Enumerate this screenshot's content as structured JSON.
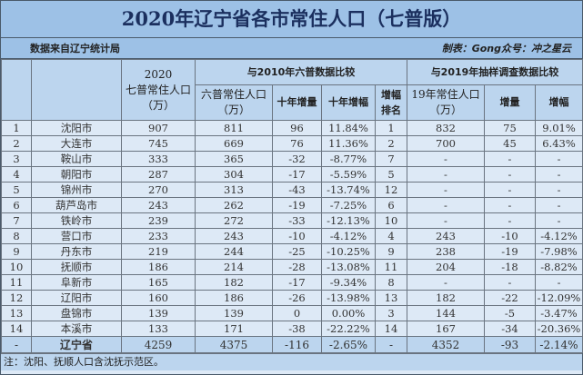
{
  "title": "2020年辽宁省各市常住人口（七普版）",
  "source": "数据来自辽宁统计局",
  "credit": "制表：Gong众号：冲之星云",
  "headers": {
    "col2020_year": "2020",
    "col2020_name": "七普常住人口",
    "col2020_unit": "（万）",
    "group2010": "与2010年六普数据比较",
    "group2019": "与2019年抽样调查数据比较",
    "pop2010_name": "六普常住人口",
    "pop2010_unit": "（万）",
    "inc10": "十年增量",
    "rate10": "十年增幅",
    "rank_a": "增幅",
    "rank_b": "排名",
    "pop2019_name": "19年常住人口",
    "pop2019_unit": "（万）",
    "inc19": "增量",
    "rate19": "增幅"
  },
  "rows": [
    [
      "1",
      "沈阳市",
      "907",
      "811",
      "96",
      "11.84%",
      "1",
      "832",
      "75",
      "9.01%"
    ],
    [
      "2",
      "大连市",
      "745",
      "669",
      "76",
      "11.36%",
      "2",
      "700",
      "45",
      "6.43%"
    ],
    [
      "3",
      "鞍山市",
      "333",
      "365",
      "-32",
      "-8.77%",
      "7",
      "-",
      "-",
      "-"
    ],
    [
      "4",
      "朝阳市",
      "287",
      "304",
      "-17",
      "-5.59%",
      "5",
      "-",
      "-",
      "-"
    ],
    [
      "5",
      "锦州市",
      "270",
      "313",
      "-43",
      "-13.74%",
      "12",
      "-",
      "-",
      "-"
    ],
    [
      "6",
      "葫芦岛市",
      "243",
      "262",
      "-19",
      "-7.25%",
      "6",
      "-",
      "-",
      "-"
    ],
    [
      "7",
      "铁岭市",
      "239",
      "272",
      "-33",
      "-12.13%",
      "10",
      "-",
      "-",
      "-"
    ],
    [
      "8",
      "营口市",
      "233",
      "243",
      "-10",
      "-4.12%",
      "4",
      "243",
      "-10",
      "-4.12%"
    ],
    [
      "9",
      "丹东市",
      "219",
      "244",
      "-25",
      "-10.25%",
      "9",
      "238",
      "-19",
      "-7.98%"
    ],
    [
      "10",
      "抚顺市",
      "186",
      "214",
      "-28",
      "-13.08%",
      "11",
      "204",
      "-18",
      "-8.82%"
    ],
    [
      "11",
      "阜新市",
      "165",
      "182",
      "-17",
      "-9.34%",
      "8",
      "-",
      "-",
      "-"
    ],
    [
      "12",
      "辽阳市",
      "160",
      "186",
      "-26",
      "-13.98%",
      "13",
      "182",
      "-22",
      "-12.09%"
    ],
    [
      "13",
      "盘锦市",
      "139",
      "139",
      "0",
      "0.00%",
      "3",
      "144",
      "-5",
      "-3.47%"
    ],
    [
      "14",
      "本溪市",
      "133",
      "171",
      "-38",
      "-22.22%",
      "14",
      "167",
      "-34",
      "-20.36%"
    ]
  ],
  "total": [
    "-",
    "辽宁省",
    "4259",
    "4375",
    "-116",
    "-2.65%",
    "-",
    "4352",
    "-93",
    "-2.14%"
  ],
  "note": "注：沈阳、抚顺人口含沈抚示范区。"
}
